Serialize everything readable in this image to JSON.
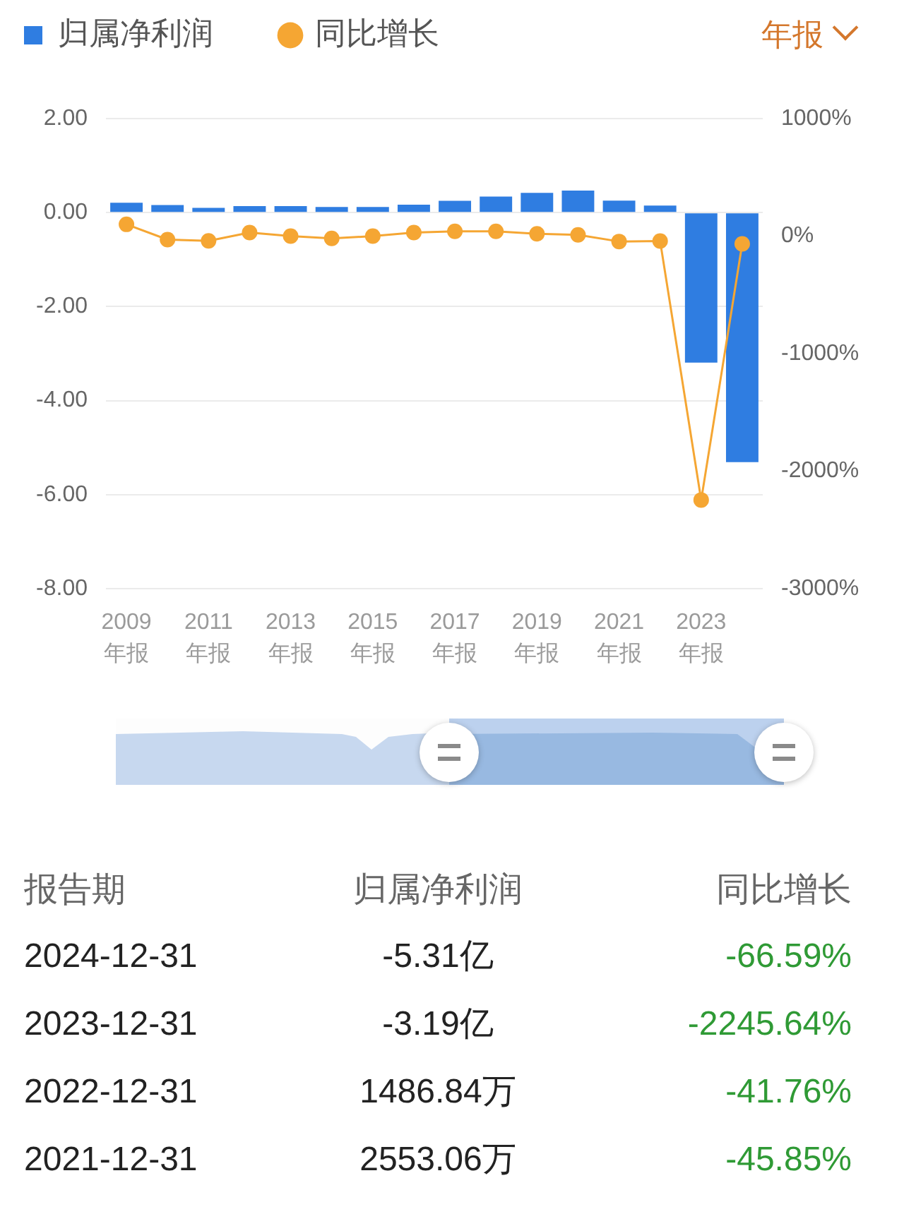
{
  "chart_data": {
    "type": "bar",
    "categories": [
      "2009\n年报",
      null,
      "2011\n年报",
      null,
      "2013\n年报",
      null,
      "2015\n年报",
      null,
      "2017\n年报",
      null,
      "2019\n年报",
      null,
      "2021\n年报",
      null,
      "2023\n年报",
      null
    ],
    "series": [
      {
        "name": "归属净利润",
        "color": "#2f7de1",
        "values": [
          0.21,
          0.16,
          0.1,
          0.14,
          0.14,
          0.12,
          0.12,
          0.17,
          0.25,
          0.34,
          0.42,
          0.47,
          0.255306,
          0.148684,
          -3.19,
          -5.31
        ]
      },
      {
        "name": "同比增长",
        "type": "line",
        "axis": "y2",
        "color": "#f5a633",
        "values": [
          100,
          -30,
          -40,
          30,
          0,
          -20,
          0,
          30,
          40,
          40,
          20,
          10,
          -45.85,
          -41.76,
          -2245.64,
          -66.59
        ]
      }
    ],
    "ylim": [
      -8,
      2
    ],
    "yticks": [
      {
        "value": -8,
        "label": "-8.00"
      },
      {
        "value": -6,
        "label": "-6.00"
      },
      {
        "value": -4,
        "label": "-4.00"
      },
      {
        "value": -2,
        "label": "-2.00"
      },
      {
        "value": 0,
        "label": "0.00"
      },
      {
        "value": 2,
        "label": "2.00"
      }
    ],
    "y2lim": [
      -3000,
      1000
    ],
    "y2ticks": [
      {
        "value": -3000,
        "label": "-3000%"
      },
      {
        "value": -2000,
        "label": "-2000%"
      },
      {
        "value": -1000,
        "label": "-1000%"
      },
      {
        "value": 0,
        "label": "0%"
      },
      {
        "value": 1000,
        "label": "1000%"
      }
    ],
    "grid": "y",
    "legend": "top left",
    "marker": "circle",
    "annotations": [
      "年报",
      "报告期",
      "归属净利润",
      "同比增长",
      "2024-12-31",
      "-5.31亿",
      "-66.59%",
      "2023-12-31",
      "-3.19亿",
      "-2245.64%",
      "2022-12-31",
      "1486.84万",
      "-41.76%",
      "2021-12-31",
      "2553.06万",
      "-45.85%"
    ]
  }
}
